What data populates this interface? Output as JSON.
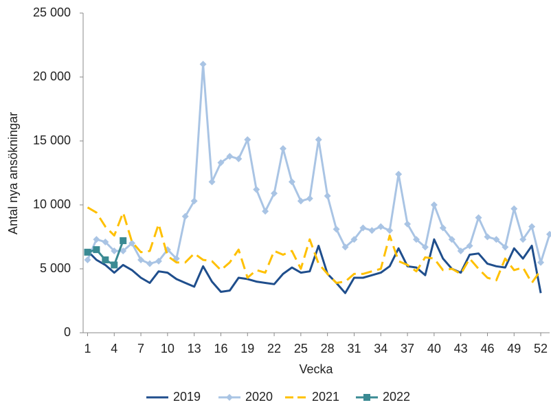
{
  "chart_data": {
    "type": "line",
    "y_label": "Antal nya ansökningar",
    "x_label": "Vecka",
    "x": [
      1,
      2,
      3,
      4,
      5,
      6,
      7,
      8,
      9,
      10,
      11,
      12,
      13,
      14,
      15,
      16,
      17,
      18,
      19,
      20,
      21,
      22,
      23,
      24,
      25,
      26,
      27,
      28,
      29,
      30,
      31,
      32,
      33,
      34,
      35,
      36,
      37,
      38,
      39,
      40,
      41,
      42,
      43,
      44,
      45,
      46,
      47,
      48,
      49,
      50,
      51,
      52,
      53
    ],
    "xlim": [
      0.5,
      53
    ],
    "xticks": [
      1,
      4,
      7,
      10,
      13,
      16,
      19,
      22,
      25,
      28,
      31,
      34,
      37,
      40,
      43,
      46,
      49,
      52
    ],
    "ylim": [
      0,
      25000
    ],
    "yticks": [
      0,
      {
        "value": 5000,
        "label": "5 000"
      },
      {
        "value": 10000,
        "label": "10 000"
      },
      {
        "value": 15000,
        "label": "15 000"
      },
      {
        "value": 20000,
        "label": "20 000"
      },
      {
        "value": 25000,
        "label": "25 000"
      }
    ],
    "grid": false,
    "legend": "bottom",
    "series": [
      {
        "name": "2019",
        "color": "#1f4e8c",
        "dash": false,
        "marker": "none",
        "values": [
          6400,
          5700,
          5300,
          4700,
          5300,
          4900,
          4300,
          3900,
          4800,
          4700,
          4200,
          3900,
          3600,
          5200,
          4000,
          3200,
          3300,
          4300,
          4200,
          4000,
          3900,
          3800,
          4600,
          5100,
          4700,
          4800,
          6800,
          4600,
          3900,
          3100,
          4300,
          4300,
          4500,
          4700,
          5200,
          6600,
          5200,
          5100,
          4500,
          7300,
          5800,
          5000,
          4700,
          6100,
          6200,
          5400,
          5200,
          5100,
          6600,
          5800,
          6800,
          3100,
          null
        ]
      },
      {
        "name": "2020",
        "color": "#a9c4e4",
        "dash": false,
        "marker": "diamond",
        "values": [
          5700,
          7300,
          7100,
          6400,
          6400,
          7000,
          5700,
          5400,
          5600,
          6500,
          5800,
          9100,
          10300,
          21000,
          11800,
          13300,
          13800,
          13600,
          15100,
          11200,
          9500,
          10900,
          14400,
          11800,
          10300,
          10500,
          15100,
          10700,
          8100,
          6700,
          7300,
          8200,
          8000,
          8300,
          8000,
          12400,
          8500,
          7300,
          6700,
          10000,
          8200,
          7300,
          6400,
          6800,
          9000,
          7500,
          7300,
          6700,
          9700,
          7300,
          8300,
          5500,
          7700
        ]
      },
      {
        "name": "2021",
        "color": "#ffc000",
        "dash": true,
        "marker": "none",
        "values": [
          9800,
          9400,
          8300,
          7600,
          9400,
          7100,
          6300,
          6400,
          8500,
          6000,
          5500,
          5500,
          6200,
          5700,
          5600,
          4900,
          5500,
          6500,
          4300,
          4900,
          4700,
          6400,
          6100,
          6400,
          5000,
          7300,
          5400,
          4600,
          3900,
          4000,
          4600,
          4600,
          4800,
          5000,
          7600,
          5600,
          5300,
          4800,
          5900,
          5800,
          4900,
          5000,
          4600,
          5800,
          5000,
          4300,
          4100,
          5800,
          4900,
          5100,
          3900,
          4900,
          null
        ]
      },
      {
        "name": "2022",
        "color": "#3a8a93",
        "dash": false,
        "marker": "square",
        "values": [
          6300,
          6500,
          5700,
          5300,
          7200,
          null,
          null,
          null,
          null,
          null,
          null,
          null,
          null,
          null,
          null,
          null,
          null,
          null,
          null,
          null,
          null,
          null,
          null,
          null,
          null,
          null,
          null,
          null,
          null,
          null,
          null,
          null,
          null,
          null,
          null,
          null,
          null,
          null,
          null,
          null,
          null,
          null,
          null,
          null,
          null,
          null,
          null,
          null,
          null,
          null,
          null,
          null,
          null
        ]
      }
    ]
  }
}
